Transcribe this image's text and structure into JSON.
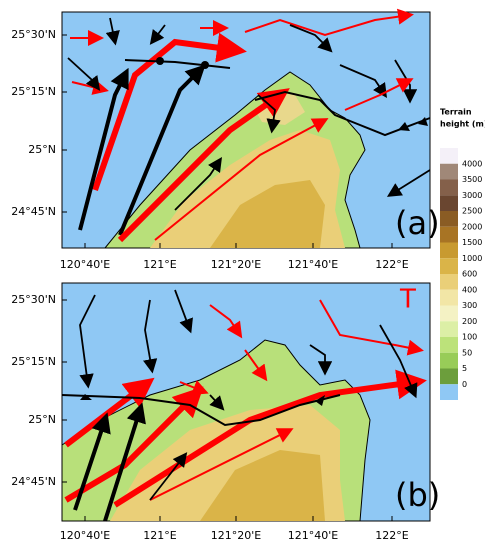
{
  "panels": [
    {
      "label": "(a)",
      "yticks": [
        "25°30'N",
        "25°15'N",
        "25°N",
        "24°45'N"
      ],
      "xticks": [
        "120°40'E",
        "121°E",
        "121°20'E",
        "121°40'E",
        "122°E"
      ]
    },
    {
      "label": "(b)",
      "annotation": "T",
      "yticks": [
        "25°30'N",
        "25°15'N",
        "25°N",
        "24°45'N"
      ],
      "xticks": [
        "120°40'E",
        "121°E",
        "121°20'E",
        "121°40'E",
        "122°E"
      ]
    }
  ],
  "colorbar": {
    "title": [
      "Terrain",
      "height (m)"
    ],
    "labels": [
      "4000",
      "3500",
      "3000",
      "2500",
      "2000",
      "1500",
      "1000",
      "600",
      "400",
      "300",
      "200",
      "100",
      "50",
      "5",
      "0"
    ],
    "colors": [
      "#f4f0f8",
      "#a08878",
      "#84604a",
      "#6a4630",
      "#8a5c24",
      "#a87424",
      "#c89a30",
      "#dab448",
      "#eacf78",
      "#f2e6a6",
      "#f4f2c4",
      "#dcefa6",
      "#bce27a",
      "#98cc58",
      "#6c9e3c",
      "#8fc8f4"
    ]
  }
}
